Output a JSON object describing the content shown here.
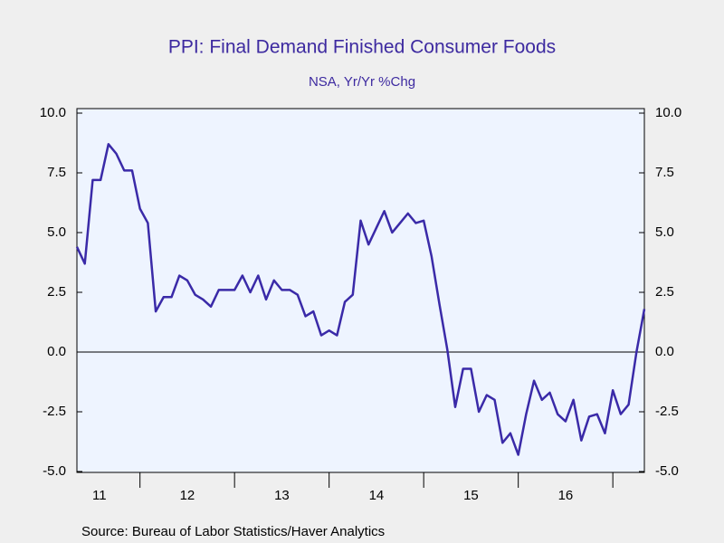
{
  "chart_data": {
    "type": "line",
    "title": "PPI: Final Demand Finished Consumer Foods",
    "subtitle": "NSA, Yr/Yr %Chg",
    "source": "Source:  Bureau of Labor Statistics/Haver Analytics",
    "x_labels": [
      "11",
      "12",
      "13",
      "14",
      "15",
      "16"
    ],
    "series": [
      {
        "color": "#3a2aa8",
        "values": [
          4.4,
          3.7,
          7.2,
          7.2,
          8.7,
          8.3,
          7.6,
          7.6,
          6.0,
          5.4,
          1.7,
          2.3,
          2.3,
          3.2,
          3.0,
          2.4,
          2.2,
          1.9,
          2.6,
          2.6,
          2.6,
          3.2,
          2.5,
          3.2,
          2.2,
          3.0,
          2.6,
          2.6,
          2.4,
          1.5,
          1.7,
          0.7,
          0.9,
          0.7,
          2.1,
          2.4,
          5.5,
          4.5,
          5.2,
          5.9,
          5.0,
          5.4,
          5.8,
          5.4,
          5.5,
          4.0,
          2.0,
          0.1,
          -2.3,
          -0.7,
          -0.7,
          -2.5,
          -1.8,
          -2.0,
          -3.8,
          -3.4,
          -4.3,
          -2.6,
          -1.2,
          -2.0,
          -1.7,
          -2.6,
          -2.9,
          -2.0,
          -3.7,
          -2.7,
          -2.6,
          -3.4,
          -1.6,
          -2.6,
          -2.2,
          0.0,
          1.8
        ]
      }
    ],
    "ylim": [
      -5,
      10
    ],
    "yticks": [
      {
        "value": -5,
        "label": "-5.0"
      },
      {
        "value": -2.5,
        "label": "-2.5"
      },
      {
        "value": 0,
        "label": "0.0"
      },
      {
        "value": 2.5,
        "label": "2.5"
      },
      {
        "value": 5,
        "label": "5.0"
      },
      {
        "value": 7.5,
        "label": "7.5"
      },
      {
        "value": 10,
        "label": "10.0"
      }
    ],
    "y2lim": [
      -5,
      10
    ],
    "y2ticks": [
      {
        "value": -5,
        "label": "-5.0"
      },
      {
        "value": -2.5,
        "label": "-2.5"
      },
      {
        "value": 0,
        "label": "0.0"
      },
      {
        "value": 2.5,
        "label": "2.5"
      },
      {
        "value": 5,
        "label": "5.0"
      },
      {
        "value": 7.5,
        "label": "7.5"
      },
      {
        "value": 10,
        "label": "10.0"
      }
    ],
    "zero_line": true
  }
}
